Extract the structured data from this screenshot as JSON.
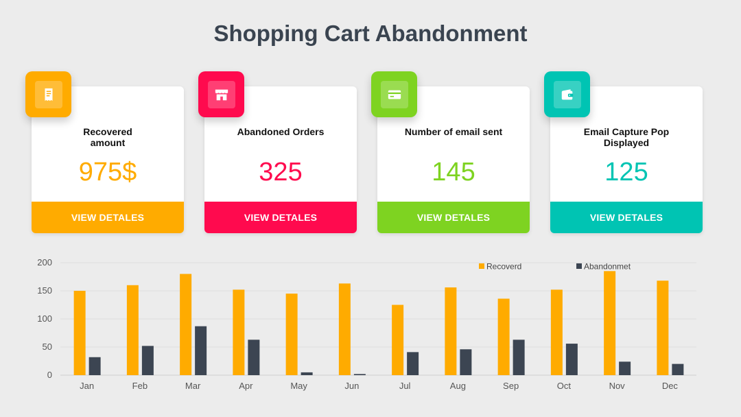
{
  "title": {
    "bold": "Shopping",
    "rest": " Cart Abandonment"
  },
  "cards": [
    {
      "label": "Recovered\namount",
      "value": "975$",
      "button": "VIEW DETALES",
      "color": "#ffab00",
      "icon": "receipt-icon"
    },
    {
      "label": "Abandoned Orders",
      "value": "325",
      "button": "VIEW DETALES",
      "color": "#ff0a4e",
      "icon": "store-icon"
    },
    {
      "label": "Number of email sent",
      "value": "145",
      "button": "VIEW DETALES",
      "color": "#7ed321",
      "icon": "credit-card-icon"
    },
    {
      "label": "Email Capture Pop\nDisplayed",
      "value": "125",
      "button": "VIEW DETALES",
      "color": "#00c4b3",
      "icon": "wallet-icon"
    }
  ],
  "chart_data": {
    "type": "bar",
    "categories": [
      "Jan",
      "Feb",
      "Mar",
      "Apr",
      "May",
      "Jun",
      "Jul",
      "Aug",
      "Sep",
      "Oct",
      "Nov",
      "Dec"
    ],
    "series": [
      {
        "name": "Recoverd",
        "color": "#ffab00",
        "values": [
          150,
          160,
          180,
          152,
          145,
          163,
          125,
          156,
          136,
          152,
          185,
          168
        ]
      },
      {
        "name": "Abandonmet",
        "color": "#3c4552",
        "values": [
          32,
          52,
          87,
          63,
          5,
          2,
          41,
          46,
          63,
          56,
          24,
          20
        ]
      }
    ],
    "ylim": [
      0,
      200
    ],
    "yticks": [
      0,
      50,
      100,
      150,
      200
    ],
    "grid": true,
    "legend": "top-right"
  }
}
